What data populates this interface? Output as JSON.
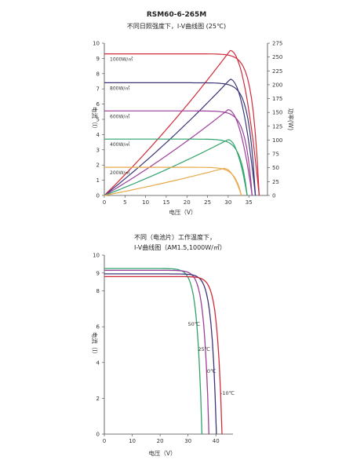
{
  "charts_meta": {
    "title1": "RSM60-6-265M",
    "subtitle1": "不同日照强度下，I-V曲线图 (25℃)",
    "title2_line1": "不同（电池片）工作温度下，",
    "title2_line2": "I-V曲线图（AM1.5,1000W/㎡）"
  },
  "chart_data": [
    {
      "type": "line",
      "title": "RSM60-6-265M",
      "subtitle": "不同日照强度下，I-V曲线图 (25℃)",
      "xlabel": "电压（V）",
      "ylabel": "电流（I）",
      "y2label": "功率(W)",
      "xlim": [
        0,
        38
      ],
      "ylim": [
        0,
        10
      ],
      "y2lim": [
        0,
        275
      ],
      "xticks": [
        0,
        5,
        10,
        15,
        20,
        25,
        30,
        35
      ],
      "yticks": [
        0,
        1,
        2,
        3,
        4,
        5,
        6,
        7,
        8,
        9,
        10
      ],
      "y2ticks": [
        0,
        25,
        50,
        75,
        100,
        125,
        150,
        175,
        200,
        225,
        250,
        275
      ],
      "series": [
        {
          "name": "1000W/㎡",
          "color": "#d12b3a",
          "isc": 9.3,
          "voc": 37.5,
          "pmax": 262,
          "vmp": 30.5
        },
        {
          "name": "800W/㎡",
          "color": "#3b3578",
          "isc": 7.4,
          "voc": 36.6,
          "pmax": 210,
          "vmp": 30.5
        },
        {
          "name": "600W/㎡",
          "color": "#9c3f9a",
          "isc": 5.55,
          "voc": 35.8,
          "pmax": 155,
          "vmp": 30
        },
        {
          "name": "400W/㎡",
          "color": "#2fa36b",
          "isc": 3.7,
          "voc": 34.6,
          "pmax": 101,
          "vmp": 30
        },
        {
          "name": "200W/㎡",
          "color": "#e8a94a",
          "isc": 1.85,
          "voc": 33.2,
          "pmax": 49,
          "vmp": 29
        }
      ]
    },
    {
      "type": "line",
      "title": "不同（电池片）工作温度下，I-V曲线图（AM1.5,1000W/㎡）",
      "xlabel": "电压（V）",
      "ylabel": "电流（I）",
      "xlim": [
        0,
        45
      ],
      "ylim": [
        0,
        10
      ],
      "xticks": [
        0,
        10,
        20,
        30,
        40
      ],
      "yticks": [
        0,
        2,
        4,
        6,
        8,
        9,
        10
      ],
      "series": [
        {
          "name": "50℃",
          "color": "#2fa36b",
          "isc": 9.25,
          "voc": 35.0
        },
        {
          "name": "25℃",
          "color": "#9c3f9a",
          "isc": 9.15,
          "voc": 37.5
        },
        {
          "name": "0℃",
          "color": "#3b3578",
          "isc": 8.95,
          "voc": 40.2
        },
        {
          "name": "-10℃",
          "color": "#d12b3a",
          "isc": 8.8,
          "voc": 42.2
        }
      ]
    }
  ]
}
